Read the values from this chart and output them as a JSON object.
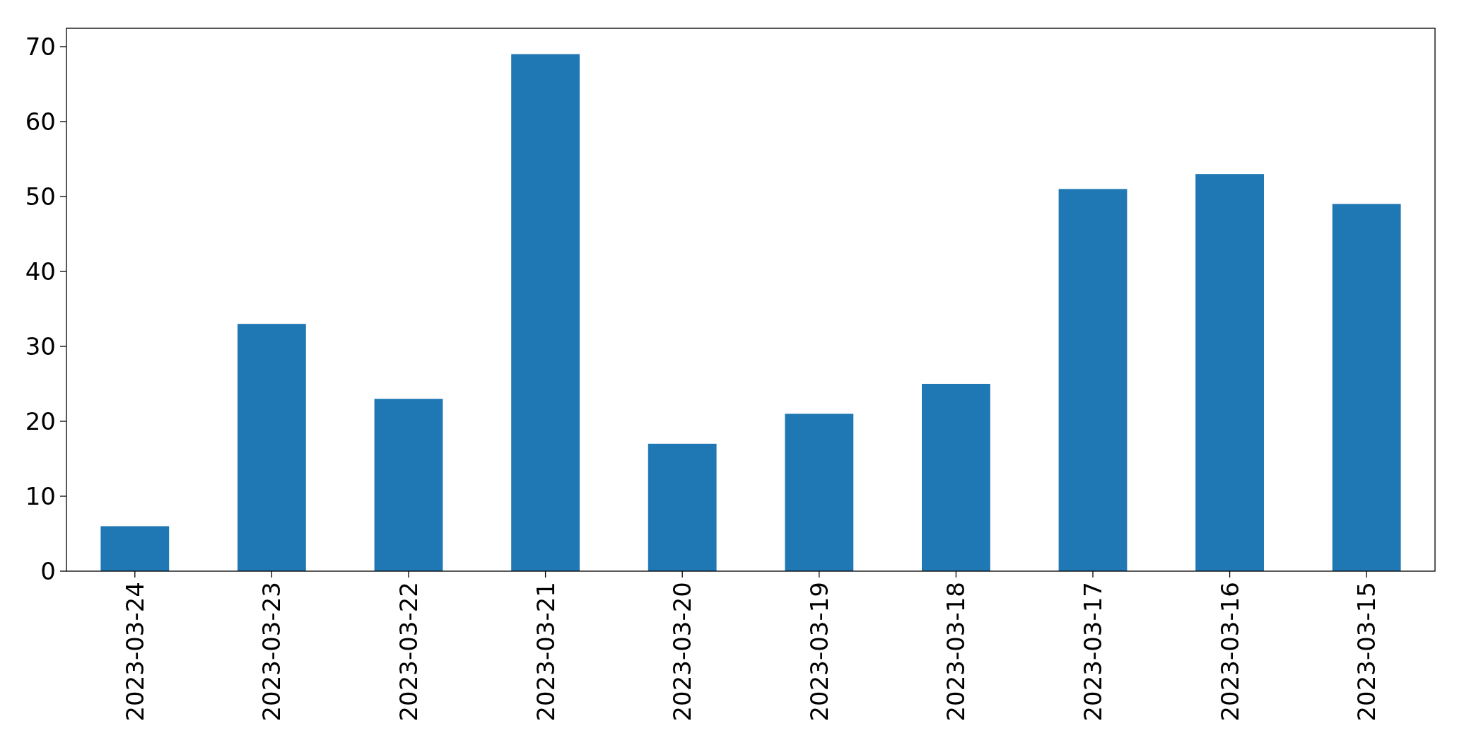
{
  "chart_data": {
    "type": "bar",
    "categories": [
      "2023-03-24",
      "2023-03-23",
      "2023-03-22",
      "2023-03-21",
      "2023-03-20",
      "2023-03-19",
      "2023-03-18",
      "2023-03-17",
      "2023-03-16",
      "2023-03-15"
    ],
    "values": [
      6,
      33,
      23,
      69,
      17,
      21,
      25,
      51,
      53,
      49
    ],
    "color": "#1f77b4",
    "ylim": [
      0,
      72.45
    ],
    "yticks": [
      0,
      10,
      20,
      30,
      40,
      50,
      60,
      70
    ],
    "grid": false
  }
}
